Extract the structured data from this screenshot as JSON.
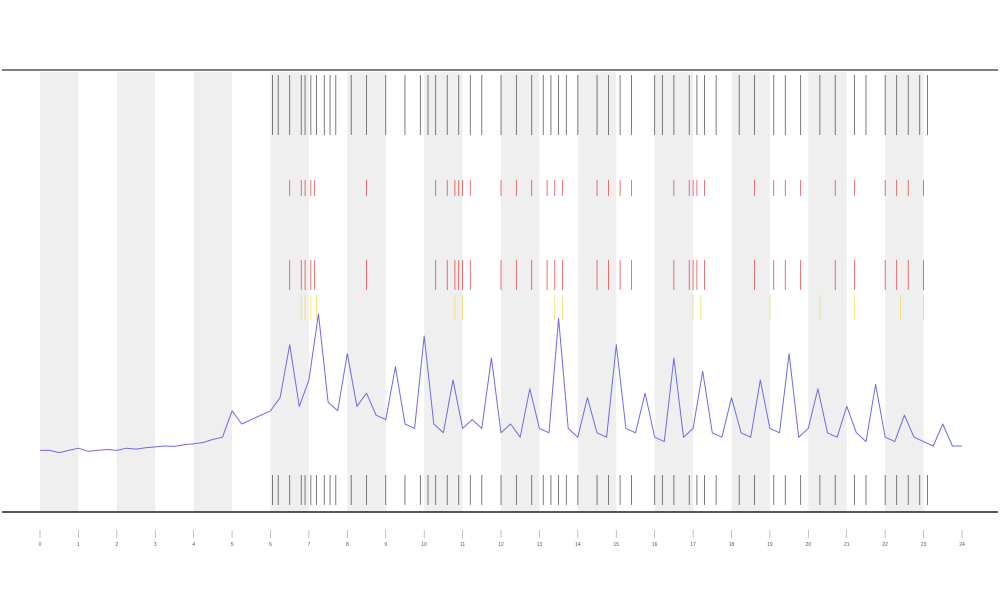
{
  "chart_data": {
    "type": "line",
    "xlim": [
      0,
      24
    ],
    "ylim": [
      0,
      100
    ],
    "xticks": [
      0,
      1,
      2,
      3,
      4,
      5,
      6,
      7,
      8,
      9,
      10,
      11,
      12,
      13,
      14,
      15,
      16,
      17,
      18,
      19,
      20,
      21,
      22,
      23,
      24
    ],
    "shaded": [
      [
        0,
        1
      ],
      [
        2,
        3
      ],
      [
        4,
        5
      ],
      [
        6,
        7
      ],
      [
        8,
        9
      ],
      [
        10,
        11
      ],
      [
        12,
        13
      ],
      [
        14,
        15
      ],
      [
        16,
        17
      ],
      [
        18,
        19
      ],
      [
        20,
        21
      ],
      [
        22,
        23
      ]
    ],
    "shade_color": "#efefef",
    "series": [
      {
        "color": "#6b6be6",
        "x": [
          0,
          0.25,
          0.5,
          0.75,
          1,
          1.25,
          1.5,
          1.75,
          2,
          2.25,
          2.5,
          2.75,
          3,
          3.25,
          3.5,
          3.75,
          4,
          4.25,
          4.5,
          4.75,
          5,
          5.25,
          5.5,
          5.75,
          6,
          6.25,
          6.5,
          6.75,
          7,
          7.25,
          7.5,
          7.75,
          8,
          8.25,
          8.5,
          8.75,
          9,
          9.25,
          9.5,
          9.75,
          10,
          10.25,
          10.5,
          10.75,
          11,
          11.25,
          11.5,
          11.75,
          12,
          12.25,
          12.5,
          12.75,
          13,
          13.25,
          13.5,
          13.75,
          14,
          14.25,
          14.5,
          14.75,
          15,
          15.25,
          15.5,
          15.75,
          16,
          16.25,
          16.5,
          16.75,
          17,
          17.25,
          17.5,
          17.75,
          18,
          18.25,
          18.5,
          18.75,
          19,
          19.25,
          19.5,
          19.75,
          20,
          20.25,
          20.5,
          20.75,
          21,
          21.25,
          21.5,
          21.75,
          22,
          22.25,
          22.5,
          22.75,
          23,
          23.25,
          23.5,
          23.75,
          24
        ],
        "values": [
          14,
          14,
          13.5,
          14,
          14.5,
          13.8,
          14,
          14.2,
          14,
          14.5,
          14.3,
          14.6,
          14.8,
          15,
          14.9,
          15.3,
          15.5,
          15.8,
          16.5,
          17,
          23,
          20,
          21,
          22,
          23,
          26,
          38,
          24,
          30,
          45,
          25,
          23,
          36,
          24,
          27,
          22,
          21,
          33,
          20,
          19,
          40,
          20,
          18,
          30,
          19,
          21,
          19,
          35,
          18,
          20,
          17,
          28,
          19,
          18,
          44,
          19,
          17,
          26,
          18,
          17,
          38,
          19,
          18,
          27,
          17,
          16,
          35,
          17,
          19,
          32,
          18,
          17,
          26,
          18,
          17,
          30,
          19,
          18,
          36,
          17,
          19,
          28,
          18,
          17,
          24,
          18,
          16,
          29,
          17,
          16,
          22,
          17,
          16,
          15,
          20,
          15,
          15
        ]
      }
    ],
    "events": [
      {
        "color": "#333333",
        "x": [
          6.05,
          6.2,
          6.5,
          6.8,
          6.9,
          7.05,
          7.2,
          7.4,
          7.55,
          7.7,
          8.1,
          8.5,
          9.0,
          9.5,
          9.9,
          10.1,
          10.3,
          10.6,
          10.9,
          11.2,
          11.5,
          12.0,
          12.4,
          12.8,
          13.1,
          13.3,
          13.5,
          13.7,
          14.0,
          14.5,
          14.8,
          15.1,
          15.4,
          16.0,
          16.2,
          16.5,
          16.9,
          17.1,
          17.3,
          17.6,
          18.2,
          18.6,
          19.1,
          19.4,
          19.8,
          20.3,
          20.7,
          21.2,
          21.5,
          22.0,
          22.3,
          22.6,
          22.9,
          23.1
        ]
      },
      {
        "color": "#e02222",
        "x": [
          6.5,
          6.8,
          6.9,
          7.05,
          7.15,
          8.5,
          10.3,
          10.6,
          10.8,
          10.9,
          11.0,
          11.2,
          12.0,
          12.4,
          12.8,
          13.2,
          13.4,
          13.6,
          14.5,
          14.8,
          15.1,
          15.4,
          16.5,
          16.9,
          17.0,
          17.1,
          17.3,
          18.6,
          19.1,
          19.4,
          19.8,
          20.7,
          21.2,
          22.0,
          22.3,
          22.6,
          23.0
        ]
      },
      {
        "color": "#f0d840",
        "x": [
          6.8,
          6.9,
          7.05,
          7.2,
          10.8,
          11.0,
          13.4,
          13.6,
          17.0,
          17.2,
          19.0,
          20.3,
          21.2,
          22.4,
          23.0
        ]
      }
    ]
  }
}
